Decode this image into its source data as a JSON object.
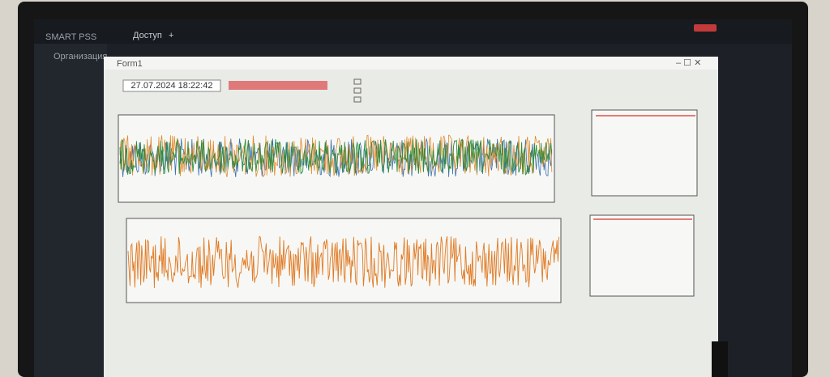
{
  "app": {
    "title": "SMART PSS",
    "tab": "Доступ",
    "sidebar_item": "Организация"
  },
  "window": {
    "title": "Form1",
    "timestamp": "27.07.2024 18:22:42"
  }
}
